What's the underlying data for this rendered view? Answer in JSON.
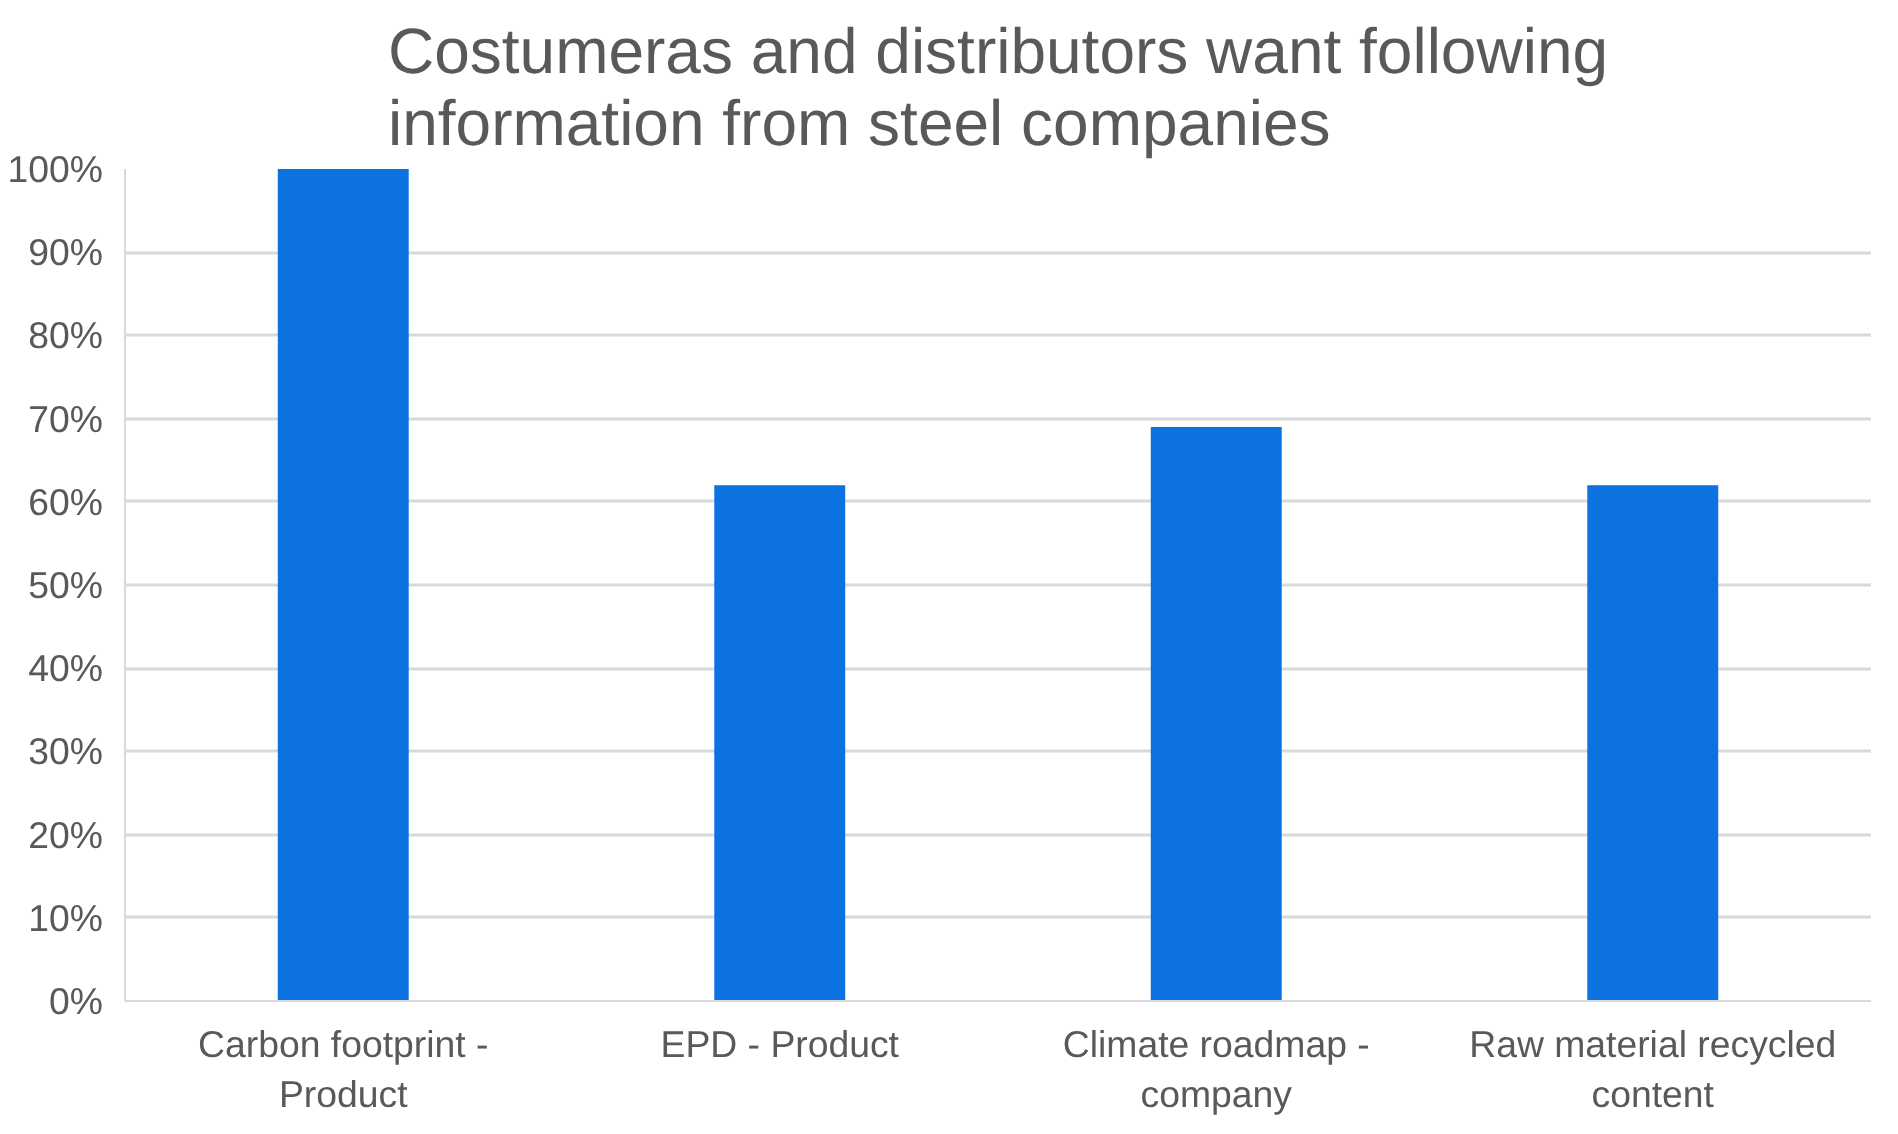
{
  "chart_data": {
    "type": "bar",
    "title": "Costumeras and distributors want following\ninformation from steel companies",
    "categories": [
      "Carbon footprint -\nProduct",
      "EPD - Product",
      "Climate roadmap -\ncompany",
      "Raw material recycled\ncontent"
    ],
    "values": [
      100,
      62,
      69,
      62
    ],
    "color": "#0c72e0",
    "ylim": [
      0,
      100
    ],
    "yticks": [
      {
        "value": 0,
        "label": "0%"
      },
      {
        "value": 10,
        "label": "10%"
      },
      {
        "value": 20,
        "label": "20%"
      },
      {
        "value": 30,
        "label": "30%"
      },
      {
        "value": 40,
        "label": "40%"
      },
      {
        "value": 50,
        "label": "50%"
      },
      {
        "value": 60,
        "label": "60%"
      },
      {
        "value": 70,
        "label": "70%"
      },
      {
        "value": 80,
        "label": "80%"
      },
      {
        "value": 90,
        "label": "90%"
      },
      {
        "value": 100,
        "label": "100%"
      }
    ],
    "grid": "y"
  }
}
